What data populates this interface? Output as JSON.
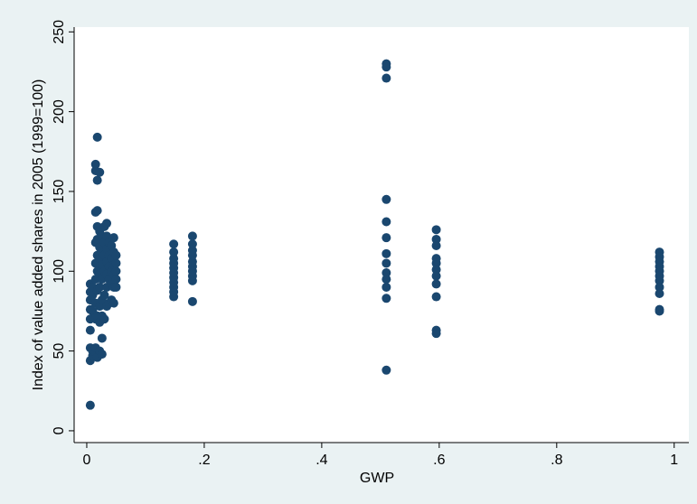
{
  "chart_data": {
    "type": "scatter",
    "xlabel": "GWP",
    "ylabel": "Index of value added shares in 2005 (1999=100)",
    "color": "#1a476f",
    "grid": false,
    "xlim": [
      -0.0215,
      1.025
    ],
    "ylim": [
      -7.4,
      253
    ],
    "xticks": [
      0,
      {
        "value": 0.2,
        "label": ".2"
      },
      {
        "value": 0.4,
        "label": ".4"
      },
      {
        "value": 0.6,
        "label": ".6"
      },
      {
        "value": 0.8,
        "label": ".8"
      },
      1
    ],
    "yticks": [
      0,
      50,
      100,
      150,
      200,
      250
    ],
    "x": [
      0.006,
      0.006,
      0.006,
      0.006,
      0.006,
      0.006,
      0.006,
      0.006,
      0.006,
      0.01,
      0.01,
      0.01,
      0.01,
      0.01,
      0.015,
      0.015,
      0.015,
      0.015,
      0.015,
      0.015,
      0.015,
      0.015,
      0.015,
      0.018,
      0.018,
      0.018,
      0.018,
      0.018,
      0.018,
      0.018,
      0.018,
      0.018,
      0.018,
      0.022,
      0.022,
      0.022,
      0.022,
      0.022,
      0.022,
      0.022,
      0.022,
      0.022,
      0.026,
      0.026,
      0.026,
      0.026,
      0.026,
      0.026,
      0.026,
      0.026,
      0.03,
      0.03,
      0.03,
      0.03,
      0.03,
      0.03,
      0.034,
      0.034,
      0.034,
      0.034,
      0.034,
      0.034,
      0.034,
      0.038,
      0.038,
      0.038,
      0.038,
      0.038,
      0.042,
      0.042,
      0.042,
      0.042,
      0.042,
      0.046,
      0.046,
      0.046,
      0.046,
      0.046,
      0.046,
      0.05,
      0.05,
      0.05,
      0.05,
      0.05,
      0.148,
      0.148,
      0.148,
      0.148,
      0.148,
      0.148,
      0.148,
      0.148,
      0.148,
      0.148,
      0.148,
      0.18,
      0.18,
      0.18,
      0.18,
      0.18,
      0.18,
      0.18,
      0.18,
      0.18,
      0.18,
      0.51,
      0.51,
      0.51,
      0.51,
      0.51,
      0.51,
      0.51,
      0.51,
      0.51,
      0.51,
      0.51,
      0.51,
      0.51,
      0.595,
      0.595,
      0.595,
      0.595,
      0.595,
      0.595,
      0.595,
      0.595,
      0.595,
      0.595,
      0.595,
      0.975,
      0.975,
      0.975,
      0.975,
      0.975,
      0.975,
      0.975,
      0.975,
      0.975,
      0.975,
      0.975
    ],
    "y": [
      16,
      44,
      52,
      63,
      70,
      76,
      82,
      87,
      92,
      47,
      50,
      75,
      85,
      90,
      52,
      70,
      80,
      95,
      105,
      118,
      137,
      163,
      167,
      46,
      72,
      88,
      100,
      110,
      120,
      128,
      138,
      157,
      184,
      50,
      68,
      78,
      90,
      98,
      108,
      115,
      125,
      162,
      48,
      58,
      72,
      82,
      95,
      104,
      112,
      122,
      70,
      85,
      100,
      110,
      118,
      128,
      78,
      90,
      98,
      106,
      114,
      122,
      130,
      80,
      95,
      103,
      110,
      118,
      82,
      92,
      100,
      108,
      116,
      80,
      90,
      98,
      104,
      112,
      121,
      90,
      95,
      100,
      105,
      110,
      84,
      87,
      90,
      93,
      96,
      99,
      102,
      105,
      108,
      112,
      117,
      81,
      94,
      97,
      100,
      103,
      106,
      110,
      113,
      117,
      122,
      230,
      228,
      221,
      145,
      131,
      121,
      111,
      105,
      99,
      95,
      90,
      83,
      38,
      126,
      120,
      116,
      108,
      105,
      101,
      97,
      92,
      84,
      63,
      61,
      112,
      109,
      106,
      103,
      100,
      97,
      94,
      90,
      86,
      76,
      75
    ]
  }
}
